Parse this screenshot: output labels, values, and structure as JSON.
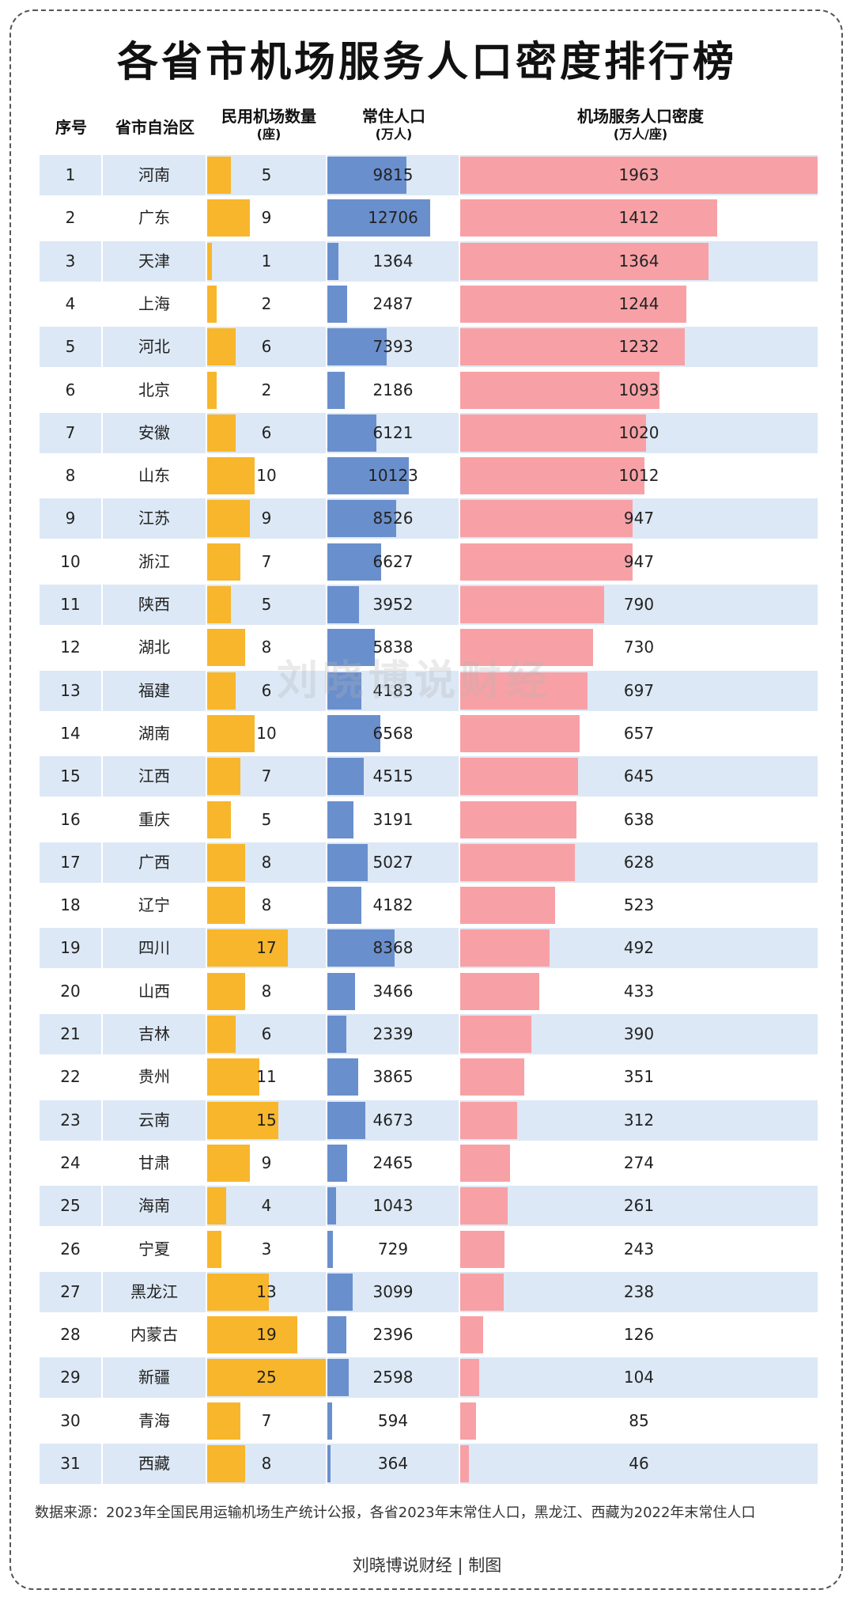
{
  "title": "各省市机场服务人口密度排行榜",
  "headers": {
    "rank": "序号",
    "province": "省市自治区",
    "airports": "民用机场数量",
    "airports_unit": "(座)",
    "population": "常住人口",
    "population_unit": "(万人)",
    "density": "机场服务人口密度",
    "density_unit": "(万人/座)"
  },
  "watermark": "刘晓博说财经",
  "source_note": "数据来源：2023年全国民用运输机场生产统计公报，各省2023年末常住人口，黑龙江、西藏为2022年末常住人口",
  "credit": "刘晓博说财经 | 制图",
  "colors": {
    "airports": "#f8b62c",
    "population": "#6a8fcd",
    "density": "#f7a1a6",
    "row_alt": "#dce8f5"
  },
  "chart_data": {
    "type": "table",
    "columns": [
      "序号",
      "省市自治区",
      "民用机场数量(座)",
      "常住人口(万人)",
      "机场服务人口密度(万人/座)"
    ],
    "rows": [
      {
        "rank": "1",
        "province": "河南",
        "airports": "5",
        "population": "9815",
        "density": "1963"
      },
      {
        "rank": "2",
        "province": "广东",
        "airports": "9",
        "population": "12706",
        "density": "1412"
      },
      {
        "rank": "3",
        "province": "天津",
        "airports": "1",
        "population": "1364",
        "density": "1364"
      },
      {
        "rank": "4",
        "province": "上海",
        "airports": "2",
        "population": "2487",
        "density": "1244"
      },
      {
        "rank": "5",
        "province": "河北",
        "airports": "6",
        "population": "7393",
        "density": "1232"
      },
      {
        "rank": "6",
        "province": "北京",
        "airports": "2",
        "population": "2186",
        "density": "1093"
      },
      {
        "rank": "7",
        "province": "安徽",
        "airports": "6",
        "population": "6121",
        "density": "1020"
      },
      {
        "rank": "8",
        "province": "山东",
        "airports": "10",
        "population": "10123",
        "density": "1012"
      },
      {
        "rank": "9",
        "province": "江苏",
        "airports": "9",
        "population": "8526",
        "density": "947"
      },
      {
        "rank": "10",
        "province": "浙江",
        "airports": "7",
        "population": "6627",
        "density": "947"
      },
      {
        "rank": "11",
        "province": "陕西",
        "airports": "5",
        "population": "3952",
        "density": "790"
      },
      {
        "rank": "12",
        "province": "湖北",
        "airports": "8",
        "population": "5838",
        "density": "730"
      },
      {
        "rank": "13",
        "province": "福建",
        "airports": "6",
        "population": "4183",
        "density": "697"
      },
      {
        "rank": "14",
        "province": "湖南",
        "airports": "10",
        "population": "6568",
        "density": "657"
      },
      {
        "rank": "15",
        "province": "江西",
        "airports": "7",
        "population": "4515",
        "density": "645"
      },
      {
        "rank": "16",
        "province": "重庆",
        "airports": "5",
        "population": "3191",
        "density": "638"
      },
      {
        "rank": "17",
        "province": "广西",
        "airports": "8",
        "population": "5027",
        "density": "628"
      },
      {
        "rank": "18",
        "province": "辽宁",
        "airports": "8",
        "population": "4182",
        "density": "523"
      },
      {
        "rank": "19",
        "province": "四川",
        "airports": "17",
        "population": "8368",
        "density": "492"
      },
      {
        "rank": "20",
        "province": "山西",
        "airports": "8",
        "population": "3466",
        "density": "433"
      },
      {
        "rank": "21",
        "province": "吉林",
        "airports": "6",
        "population": "2339",
        "density": "390"
      },
      {
        "rank": "22",
        "province": "贵州",
        "airports": "11",
        "population": "3865",
        "density": "351"
      },
      {
        "rank": "23",
        "province": "云南",
        "airports": "15",
        "population": "4673",
        "density": "312"
      },
      {
        "rank": "24",
        "province": "甘肃",
        "airports": "9",
        "population": "2465",
        "density": "274"
      },
      {
        "rank": "25",
        "province": "海南",
        "airports": "4",
        "population": "1043",
        "density": "261"
      },
      {
        "rank": "26",
        "province": "宁夏",
        "airports": "3",
        "population": "729",
        "density": "243"
      },
      {
        "rank": "27",
        "province": "黑龙江",
        "airports": "13",
        "population": "3099",
        "density": "238"
      },
      {
        "rank": "28",
        "province": "内蒙古",
        "airports": "19",
        "population": "2396",
        "density": "126"
      },
      {
        "rank": "29",
        "province": "新疆",
        "airports": "25",
        "population": "2598",
        "density": "104"
      },
      {
        "rank": "30",
        "province": "青海",
        "airports": "7",
        "population": "594",
        "density": "85"
      },
      {
        "rank": "31",
        "province": "西藏",
        "airports": "8",
        "population": "364",
        "density": "46"
      }
    ],
    "scales": {
      "airports_max": 25,
      "population_max": 12706,
      "density_max": 1963
    }
  }
}
